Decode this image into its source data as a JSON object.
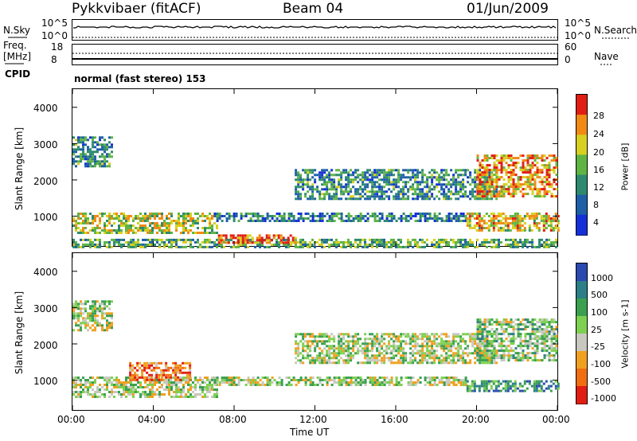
{
  "header": {
    "station": "Pykkvibaer (fitACF)",
    "beam": "Beam 04",
    "date": "01/Jun/2009"
  },
  "top_panels": {
    "nsky_label": "N.Sky",
    "nsky_top": "10^5",
    "nsky_bottom": "10^0",
    "nsearch_label": "N.Search",
    "nsearch_top": "10^5",
    "nsearch_bottom": "10^0",
    "freq_label": "Freq.",
    "freq_unit": "[MHz]",
    "freq_top": "18",
    "freq_bottom": "8",
    "nave_label": "Nave",
    "nave_top": "60",
    "nave_bottom": "0",
    "cpid_label": "CPID",
    "cpid_value": "normal (fast stereo) 153"
  },
  "chart_data": [
    {
      "type": "heatmap",
      "name": "power",
      "ylabel": "Slant Range [km]",
      "yticks": [
        "4000",
        "3000",
        "2000",
        "1000"
      ],
      "ytick_values": [
        4000,
        3000,
        2000,
        1000
      ],
      "ylim": [
        180,
        4500
      ],
      "colorbar_label": "Power [dB]",
      "colorbar_ticks": [
        "28",
        "24",
        "20",
        "16",
        "12",
        "8",
        "4"
      ],
      "colorbar_colors": [
        "#1430d8",
        "#1e5fa8",
        "#2d8a6e",
        "#5fb444",
        "#d8d020",
        "#f08a14",
        "#e01e14"
      ],
      "bands": [
        {
          "t0": 0.0,
          "t1": 2.0,
          "r0": 2400,
          "r1": 3200,
          "level": 0.35
        },
        {
          "t0": 0.0,
          "t1": 7.2,
          "r0": 550,
          "r1": 1100,
          "level": 0.6
        },
        {
          "t0": 0.0,
          "t1": 24.0,
          "r0": 180,
          "r1": 380,
          "level": 0.45
        },
        {
          "t0": 7.2,
          "t1": 11.0,
          "r0": 250,
          "r1": 500,
          "level": 0.85
        },
        {
          "t0": 7.0,
          "t1": 19.5,
          "r0": 850,
          "r1": 1100,
          "level": 0.3
        },
        {
          "t0": 11.0,
          "t1": 21.0,
          "r0": 1450,
          "r1": 2300,
          "level": 0.35
        },
        {
          "t0": 20.0,
          "t1": 24.0,
          "r0": 1550,
          "r1": 2700,
          "level": 0.75
        },
        {
          "t0": 19.5,
          "t1": 24.0,
          "r0": 600,
          "r1": 1100,
          "level": 0.65
        }
      ]
    },
    {
      "type": "heatmap",
      "name": "velocity",
      "ylabel": "Slant Range [km]",
      "yticks": [
        "4000",
        "3000",
        "2000",
        "1000"
      ],
      "ytick_values": [
        4000,
        3000,
        2000,
        1000
      ],
      "ylim": [
        180,
        4500
      ],
      "xlabel": "Time UT",
      "xticks": [
        "00:00",
        "04:00",
        "08:00",
        "12:00",
        "16:00",
        "20:00",
        "00:00"
      ],
      "xtick_values": [
        0,
        4,
        8,
        12,
        16,
        20,
        24
      ],
      "xlim": [
        0,
        24
      ],
      "colorbar_label": "Velocity [m s-1]",
      "colorbar_ticks": [
        "1000",
        "500",
        "100",
        "25",
        "-25",
        "-100",
        "-500",
        "-1000"
      ],
      "colorbar_colors": [
        "#2a4ab0",
        "#2e7e88",
        "#3aa050",
        "#7ed050",
        "#c8c8c0",
        "#f0a020",
        "#f06e10",
        "#e01e14"
      ],
      "bands": [
        {
          "t0": 0.0,
          "t1": 2.0,
          "r0": 2400,
          "r1": 3200,
          "level": 0.5
        },
        {
          "t0": 0.0,
          "t1": 7.2,
          "r0": 550,
          "r1": 1100,
          "level": 0.5
        },
        {
          "t0": 2.8,
          "t1": 5.8,
          "r0": 1000,
          "r1": 1500,
          "level": 0.8
        },
        {
          "t0": 7.0,
          "t1": 19.5,
          "r0": 850,
          "r1": 1100,
          "level": 0.5
        },
        {
          "t0": 11.0,
          "t1": 21.0,
          "r0": 1450,
          "r1": 2300,
          "level": 0.5
        },
        {
          "t0": 20.0,
          "t1": 24.0,
          "r0": 1550,
          "r1": 2700,
          "level": 0.45
        },
        {
          "t0": 19.5,
          "t1": 24.0,
          "r0": 700,
          "r1": 1000,
          "level": 0.25
        }
      ]
    }
  ]
}
